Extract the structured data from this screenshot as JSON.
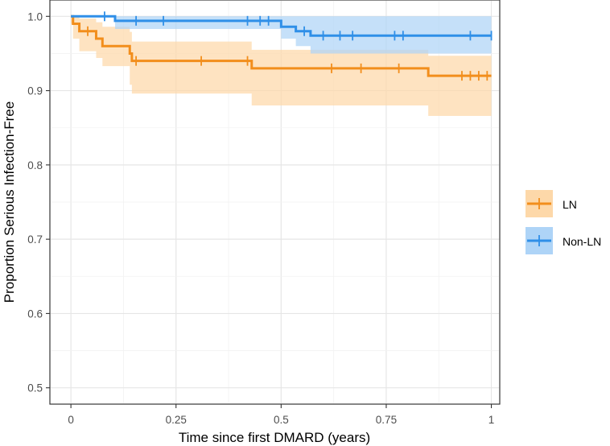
{
  "chart_data": {
    "type": "line",
    "subtype": "kaplan-meier step curves with confidence bands and censor marks",
    "xlabel": "Time since first DMARD (years)",
    "ylabel": "Proportion Serious Infection-Free",
    "xlim": [
      -0.05,
      1.02
    ],
    "ylim": [
      0.478,
      1.022
    ],
    "x_ticks": [
      0,
      0.25,
      0.5,
      0.75,
      1
    ],
    "x_tick_labels": [
      "0",
      "0.25",
      "0.5",
      "0.75",
      "1"
    ],
    "y_ticks": [
      0.5,
      0.6,
      0.7,
      0.8,
      0.9,
      1.0
    ],
    "y_tick_labels": [
      "0.5",
      "0.6",
      "0.7",
      "0.8",
      "0.9",
      "1.0"
    ],
    "grid": true,
    "legend_position": "right",
    "series": [
      {
        "name": "LN",
        "color": "#F28E1C",
        "band_color": "#FDD8A9",
        "steps": [
          [
            0,
            1.0
          ],
          [
            0.005,
            0.99
          ],
          [
            0.02,
            0.98
          ],
          [
            0.06,
            0.97
          ],
          [
            0.075,
            0.96
          ],
          [
            0.14,
            0.95
          ],
          [
            0.145,
            0.94
          ],
          [
            0.43,
            0.93
          ],
          [
            0.85,
            0.92
          ],
          [
            1.0,
            0.92
          ]
        ],
        "band_lower": [
          [
            0,
            0.99
          ],
          [
            0.005,
            0.97
          ],
          [
            0.02,
            0.953
          ],
          [
            0.06,
            0.944
          ],
          [
            0.075,
            0.933
          ],
          [
            0.14,
            0.908
          ],
          [
            0.145,
            0.896
          ],
          [
            0.43,
            0.88
          ],
          [
            0.85,
            0.866
          ],
          [
            1.0,
            0.866
          ]
        ],
        "band_upper": [
          [
            0,
            1.0
          ],
          [
            0.02,
            0.997
          ],
          [
            0.06,
            0.992
          ],
          [
            0.075,
            0.986
          ],
          [
            0.14,
            0.979
          ],
          [
            0.145,
            0.966
          ],
          [
            0.43,
            0.955
          ],
          [
            0.85,
            0.947
          ],
          [
            1.0,
            0.947
          ]
        ],
        "censored": [
          [
            0.04,
            0.98
          ],
          [
            0.155,
            0.94
          ],
          [
            0.31,
            0.94
          ],
          [
            0.42,
            0.94
          ],
          [
            0.62,
            0.93
          ],
          [
            0.69,
            0.93
          ],
          [
            0.78,
            0.93
          ],
          [
            0.93,
            0.92
          ],
          [
            0.95,
            0.92
          ],
          [
            0.97,
            0.92
          ],
          [
            0.99,
            0.92
          ]
        ]
      },
      {
        "name": "Non-LN",
        "color": "#2F8FE8",
        "band_color": "#AED4F7",
        "steps": [
          [
            0,
            1.0
          ],
          [
            0.105,
            0.994
          ],
          [
            0.5,
            0.986
          ],
          [
            0.535,
            0.98
          ],
          [
            0.57,
            0.974
          ],
          [
            1.0,
            0.974
          ]
        ],
        "band_lower": [
          [
            0,
            1.0
          ],
          [
            0.105,
            0.983
          ],
          [
            0.5,
            0.97
          ],
          [
            0.535,
            0.96
          ],
          [
            0.57,
            0.95
          ],
          [
            1.0,
            0.95
          ]
        ],
        "band_upper": [
          [
            0,
            1.0
          ],
          [
            1.0,
            1.0
          ]
        ],
        "censored": [
          [
            0.08,
            1.0
          ],
          [
            0.155,
            0.994
          ],
          [
            0.22,
            0.994
          ],
          [
            0.42,
            0.994
          ],
          [
            0.45,
            0.994
          ],
          [
            0.47,
            0.994
          ],
          [
            0.555,
            0.98
          ],
          [
            0.6,
            0.974
          ],
          [
            0.64,
            0.974
          ],
          [
            0.67,
            0.974
          ],
          [
            0.77,
            0.974
          ],
          [
            0.79,
            0.974
          ],
          [
            0.95,
            0.974
          ],
          [
            1.0,
            0.974
          ]
        ]
      }
    ]
  }
}
